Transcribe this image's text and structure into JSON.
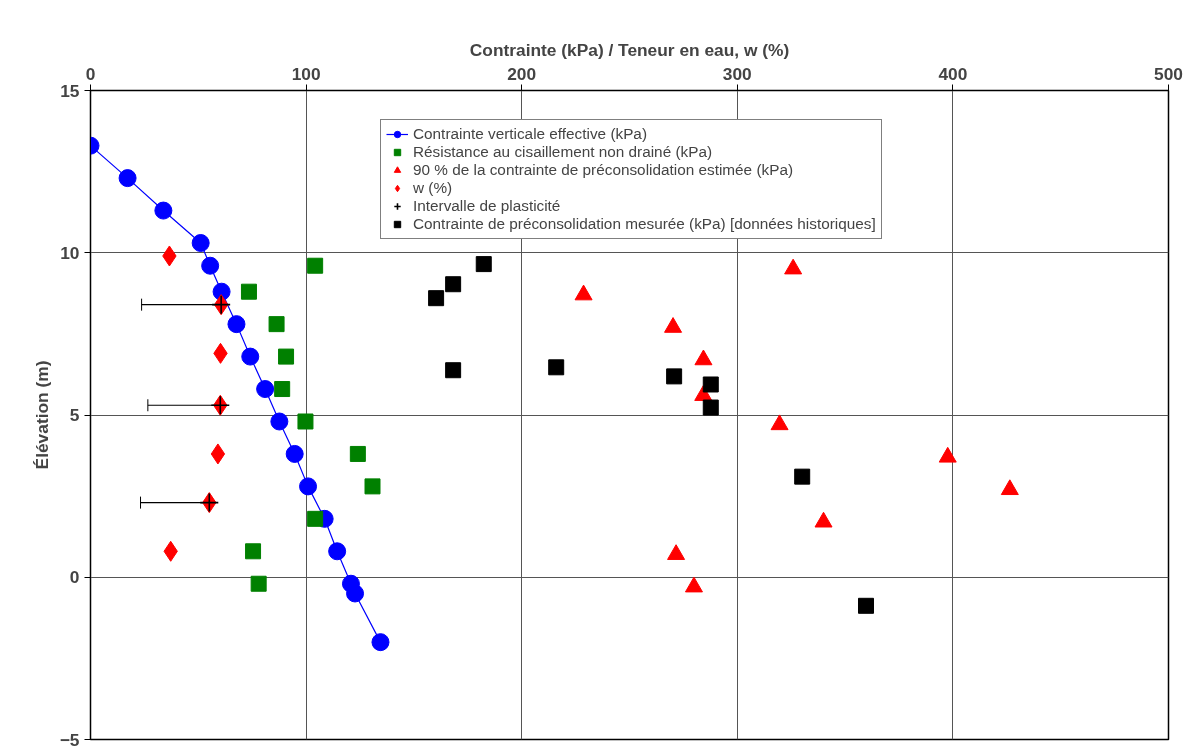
{
  "chart_data": {
    "type": "scatter",
    "xlabel": "Contrainte (kPa) / Teneur en eau, w (%)",
    "ylabel": "Élévation (m)",
    "xlim": [
      0,
      500
    ],
    "xticks": [
      0,
      100,
      200,
      300,
      400,
      500
    ],
    "ylim": [
      -5,
      15
    ],
    "yticks": [
      -5,
      0,
      5,
      10,
      15
    ],
    "grid": true,
    "legend": "top right",
    "series": [
      {
        "name": "Contrainte verticale effective (kPa)",
        "type": "line",
        "marker": "circle",
        "color": "#0000ff",
        "x": [
          0,
          17.2,
          33.8,
          51.1,
          55.5,
          60.8,
          67.7,
          74.1,
          81,
          87.6,
          94.7,
          100.9,
          108.6,
          114.4,
          120.8,
          122.7,
          134.5
        ],
        "values": [
          13.3,
          12.3,
          11.3,
          10.3,
          9.6,
          8.8,
          7.8,
          6.8,
          5.8,
          4.8,
          3.8,
          2.8,
          1.8,
          0.8,
          -0.2,
          -0.5,
          -2
        ]
      },
      {
        "name": "Résistance au cisaillement non drainé (kPa)",
        "type": "scatter",
        "marker": "square",
        "color": "#008000",
        "x": [
          104.2,
          73.5,
          86.3,
          90.7,
          88.9,
          99.7,
          124,
          130.8,
          104.2,
          75.4,
          78
        ],
        "values": [
          9.6,
          8.8,
          7.8,
          6.8,
          5.8,
          4.8,
          3.8,
          2.8,
          1.8,
          0.8,
          -0.2
        ]
      },
      {
        "name": "90 % de la contrainte de préconsolidation estimée (kPa)",
        "type": "scatter",
        "marker": "triangle",
        "color": "#ff0000",
        "x": [
          325.9,
          228.7,
          270.2,
          284.3,
          284.2,
          319.6,
          397.6,
          426.4,
          340,
          271.6,
          279.9
        ],
        "values": [
          9.5,
          8.7,
          7.7,
          6.7,
          5.6,
          4.7,
          3.7,
          2.7,
          1.7,
          0.7,
          -0.3
        ]
      },
      {
        "name": "w (%)",
        "type": "scatter",
        "marker": "diamond",
        "color": "#ff0000",
        "x": [
          36.6,
          60.6,
          60.3,
          60.2,
          59.1,
          55.1,
          37.2
        ],
        "values": [
          9.9,
          8.4,
          6.9,
          5.3,
          3.8,
          2.3,
          0.8
        ]
      },
      {
        "name": "Intervalle de plasticité",
        "type": "scatter",
        "marker": "cross",
        "color": "#000000",
        "x": [
          60.6,
          60.2,
          55.1
        ],
        "values": [
          8.4,
          5.3,
          2.3
        ],
        "xerrors": [
          [
            23.7,
            60.6
          ],
          [
            26.6,
            60.2
          ],
          [
            23.2,
            55.1
          ]
        ]
      },
      {
        "name": "Contrainte de préconsolidation mesurée (kPa) [données historiques]",
        "type": "scatter",
        "marker": "square",
        "color": "#000000",
        "x": [
          182.4,
          168.2,
          160.3,
          168.2,
          216,
          270.7,
          287.7,
          287.7,
          330.1,
          359.7
        ],
        "values": [
          9.65,
          9.03,
          8.6,
          6.38,
          6.47,
          6.19,
          5.94,
          5.23,
          3.1,
          -0.88
        ]
      }
    ]
  }
}
